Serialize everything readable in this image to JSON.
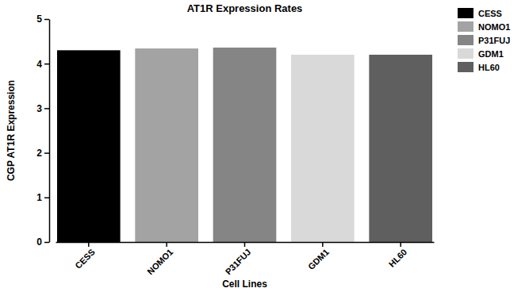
{
  "chart_data": {
    "type": "bar",
    "title": "AT1R Expression Rates",
    "x_label": "Cell Lines",
    "y_label": "CGP AT1R Expression",
    "categories": [
      "CESS",
      "NOMO1",
      "P31FUJ",
      "GDM1",
      "HL60"
    ],
    "values": [
      4.3,
      4.34,
      4.36,
      4.2,
      4.2
    ],
    "colors": [
      "#000000",
      "#a3a3a3",
      "#858585",
      "#d9d9d9",
      "#5f5f5f"
    ],
    "ylim": [
      0,
      5
    ],
    "yticks": [
      0,
      1,
      2,
      3,
      4,
      5
    ],
    "grid": false,
    "legend": "upper right"
  }
}
